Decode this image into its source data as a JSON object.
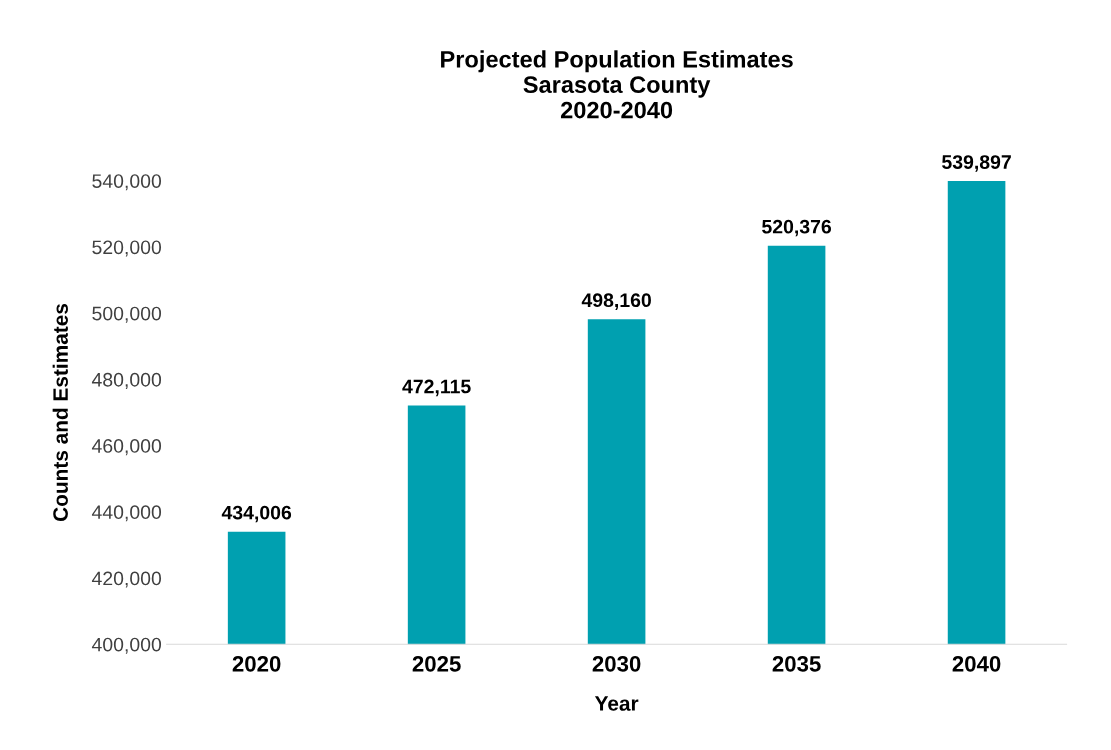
{
  "chart_data": {
    "type": "bar",
    "title": "Projected Population Estimates\nSarasota County\n2020-2040",
    "xlabel": "Year",
    "ylabel": "Counts and Estimates",
    "categories": [
      "2020",
      "2025",
      "2030",
      "2035",
      "2040"
    ],
    "values": [
      434006,
      472115,
      498160,
      520376,
      539897
    ],
    "color": "#00a0b0",
    "value_labels": [
      "434,006",
      "472,115",
      "498,160",
      "520,376",
      "539,897"
    ],
    "ylim": [
      400000,
      540000
    ],
    "yticks": [
      {
        "value": 400000,
        "label": "400,000"
      },
      {
        "value": 420000,
        "label": "420,000"
      },
      {
        "value": 440000,
        "label": "440,000"
      },
      {
        "value": 460000,
        "label": "460,000"
      },
      {
        "value": 480000,
        "label": "480,000"
      },
      {
        "value": 500000,
        "label": "500,000"
      },
      {
        "value": 520000,
        "label": "520,000"
      },
      {
        "value": 540000,
        "label": "540,000"
      }
    ],
    "grid": false
  }
}
